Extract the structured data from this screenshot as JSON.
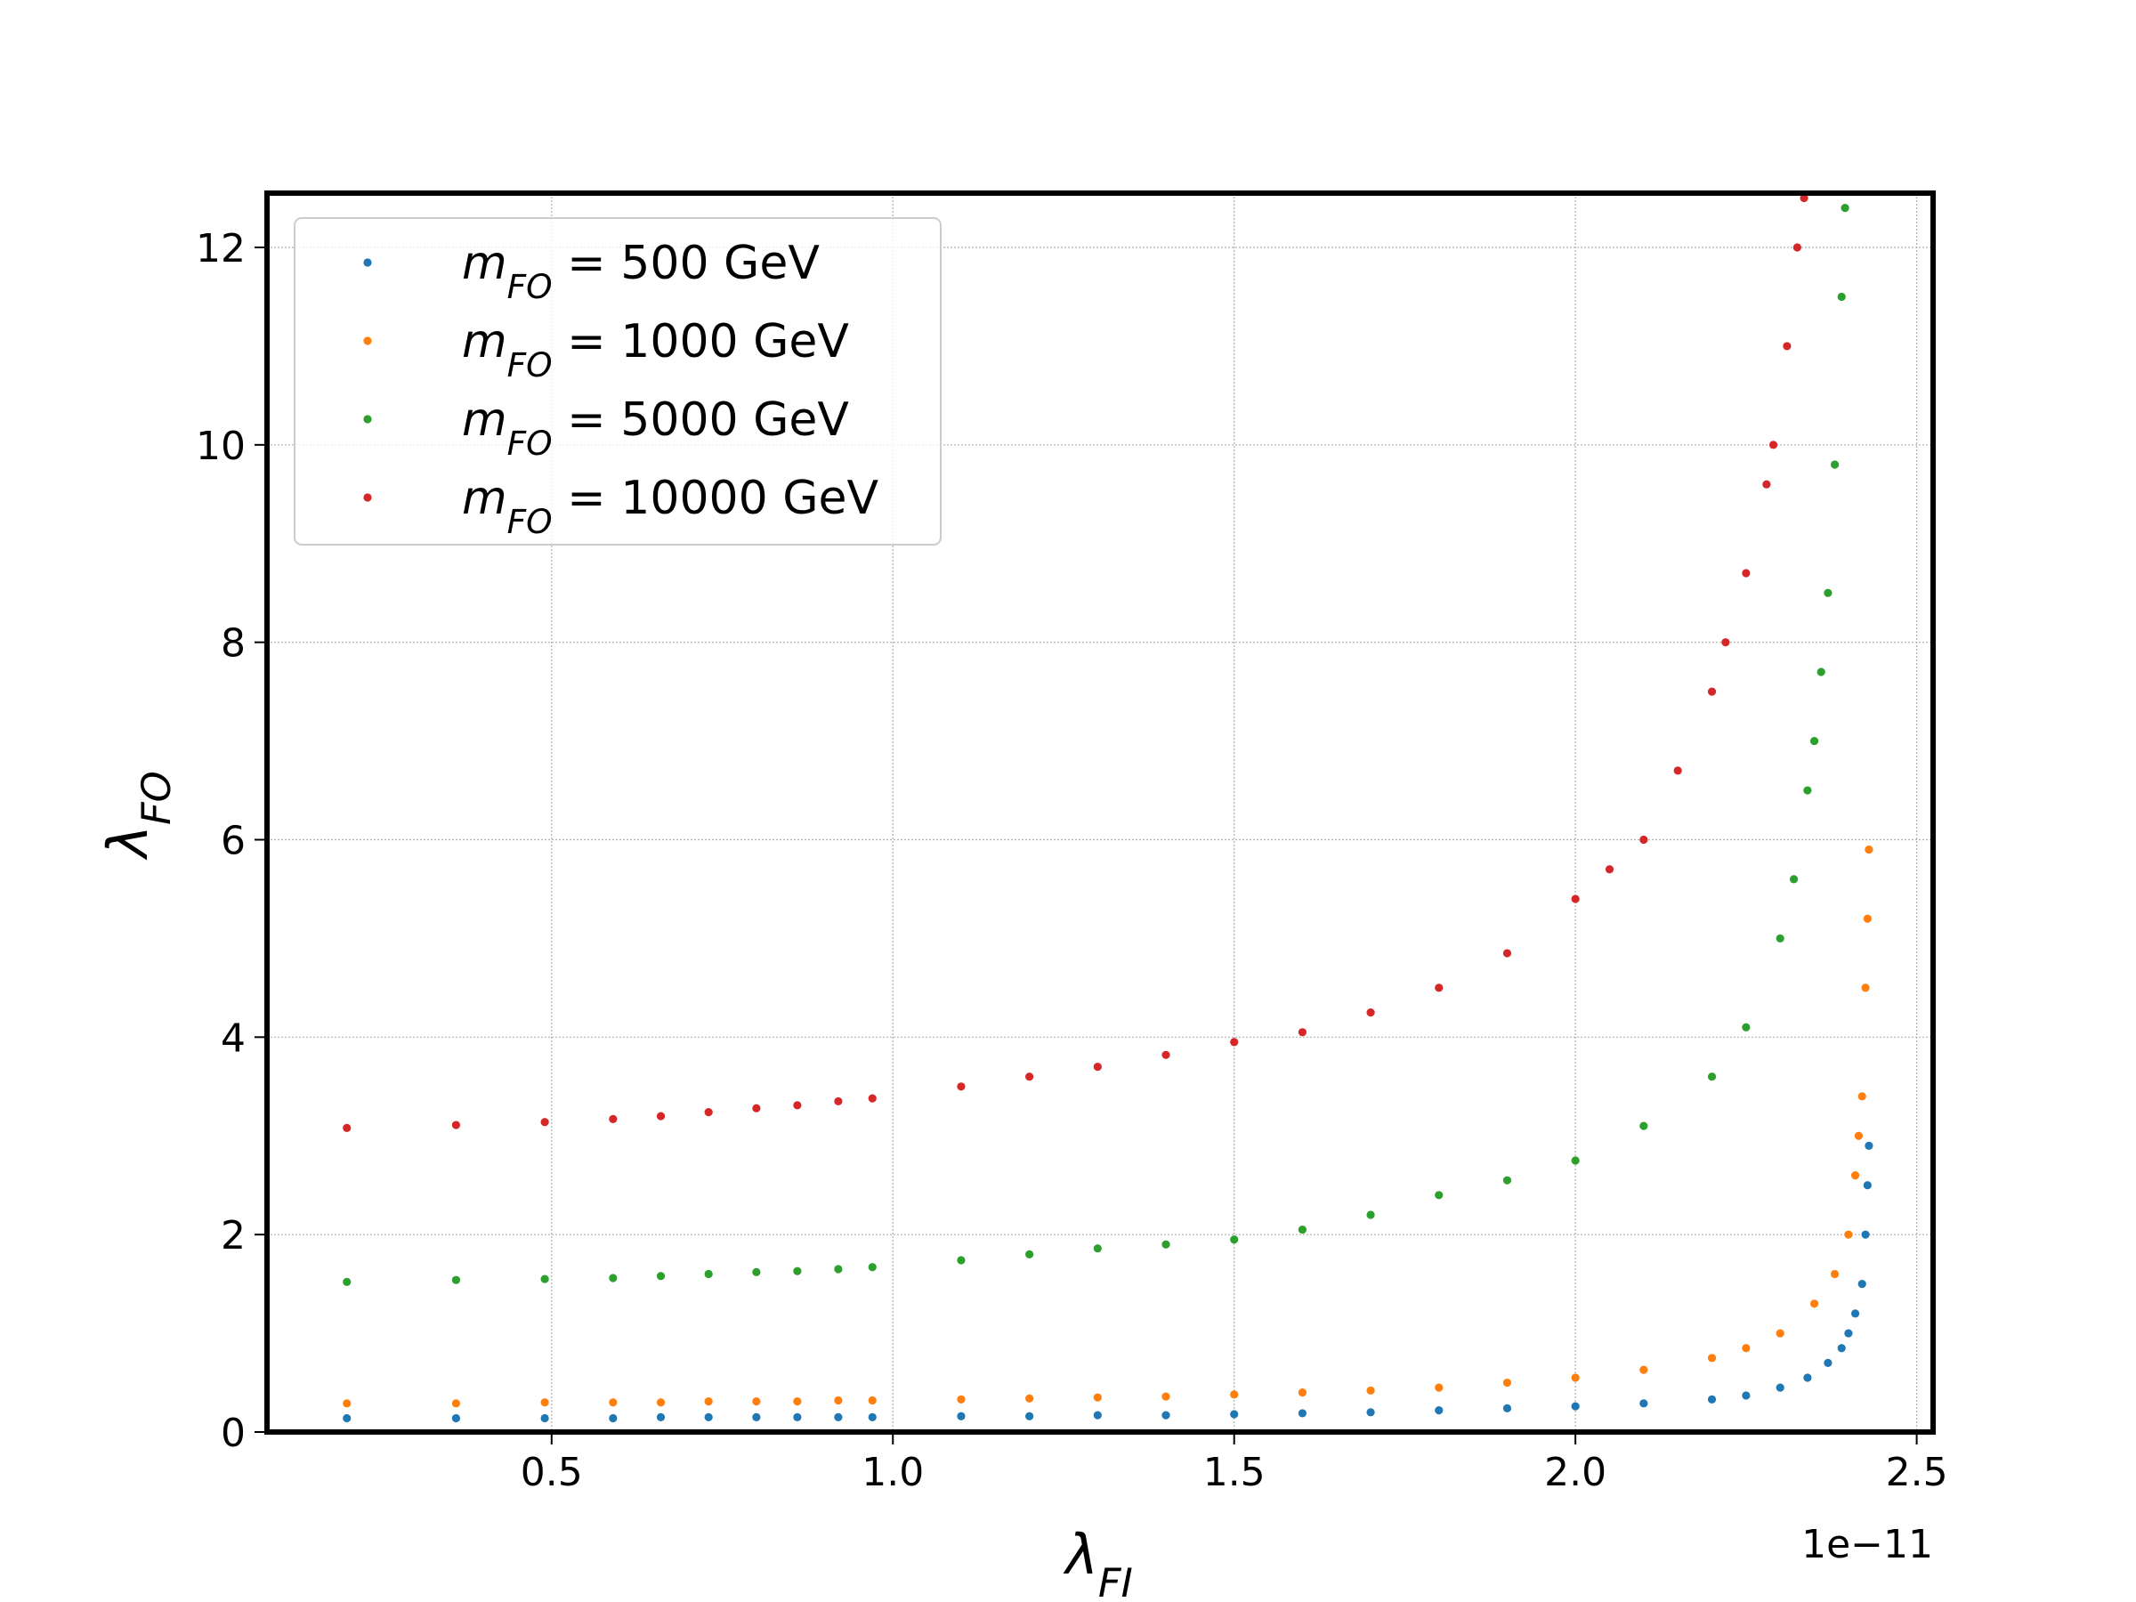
{
  "chart_data": {
    "type": "scatter",
    "xlabel": "λ_FI",
    "ylabel": "λ_FO",
    "x_offset_label": "1e−11",
    "xlim": [
      0.083,
      2.524
    ],
    "ylim": [
      0,
      12.55
    ],
    "xticks": [
      {
        "value": 0.5,
        "label": "0.5"
      },
      {
        "value": 1.0,
        "label": "1.0"
      },
      {
        "value": 1.5,
        "label": "1.5"
      },
      {
        "value": 2.0,
        "label": "2.0"
      },
      {
        "value": 2.5,
        "label": "2.5"
      }
    ],
    "yticks": [
      0,
      2,
      4,
      6,
      8,
      10,
      12
    ],
    "grid": true,
    "legend": "upper left",
    "series": [
      {
        "name": "m_FO = 500 GeV",
        "color": "#1f77b4",
        "x": [
          0.2,
          0.36,
          0.49,
          0.59,
          0.66,
          0.73,
          0.8,
          0.86,
          0.92,
          0.97,
          1.1,
          1.2,
          1.3,
          1.4,
          1.5,
          1.6,
          1.7,
          1.8,
          1.9,
          2.0,
          2.1,
          2.2,
          2.25,
          2.3,
          2.34,
          2.37,
          2.39,
          2.4,
          2.41,
          2.42,
          2.425,
          2.428,
          2.43
        ],
        "values": [
          0.14,
          0.14,
          0.14,
          0.14,
          0.15,
          0.15,
          0.15,
          0.15,
          0.15,
          0.15,
          0.16,
          0.16,
          0.17,
          0.17,
          0.18,
          0.19,
          0.2,
          0.22,
          0.24,
          0.26,
          0.29,
          0.33,
          0.37,
          0.45,
          0.55,
          0.7,
          0.85,
          1.0,
          1.2,
          1.5,
          2.0,
          2.5,
          2.9
        ]
      },
      {
        "name": "m_FO = 1000 GeV",
        "color": "#ff7f0e",
        "x": [
          0.2,
          0.36,
          0.49,
          0.59,
          0.66,
          0.73,
          0.8,
          0.86,
          0.92,
          0.97,
          1.1,
          1.2,
          1.3,
          1.4,
          1.5,
          1.6,
          1.7,
          1.8,
          1.9,
          2.0,
          2.1,
          2.2,
          2.25,
          2.3,
          2.35,
          2.38,
          2.4,
          2.41,
          2.415,
          2.42,
          2.425,
          2.428,
          2.43
        ],
        "values": [
          0.29,
          0.29,
          0.3,
          0.3,
          0.3,
          0.31,
          0.31,
          0.31,
          0.32,
          0.32,
          0.33,
          0.34,
          0.35,
          0.36,
          0.38,
          0.4,
          0.42,
          0.45,
          0.5,
          0.55,
          0.63,
          0.75,
          0.85,
          1.0,
          1.3,
          1.6,
          2.0,
          2.6,
          3.0,
          3.4,
          4.5,
          5.2,
          5.9
        ]
      },
      {
        "name": "m_FO = 5000 GeV",
        "color": "#2ca02c",
        "x": [
          0.2,
          0.36,
          0.49,
          0.59,
          0.66,
          0.73,
          0.8,
          0.86,
          0.92,
          0.97,
          1.1,
          1.2,
          1.3,
          1.4,
          1.5,
          1.6,
          1.7,
          1.8,
          1.9,
          2.0,
          2.1,
          2.2,
          2.25,
          2.3,
          2.32,
          2.34,
          2.35,
          2.36,
          2.37,
          2.38,
          2.39,
          2.395
        ],
        "values": [
          1.52,
          1.54,
          1.55,
          1.56,
          1.58,
          1.6,
          1.62,
          1.63,
          1.65,
          1.67,
          1.74,
          1.8,
          1.86,
          1.9,
          1.95,
          2.05,
          2.2,
          2.4,
          2.55,
          2.75,
          3.1,
          3.6,
          4.1,
          5.0,
          5.6,
          6.5,
          7.0,
          7.7,
          8.5,
          9.8,
          11.5,
          12.4
        ]
      },
      {
        "name": "m_FO = 10000 GeV",
        "color": "#d62728",
        "x": [
          0.2,
          0.36,
          0.49,
          0.59,
          0.66,
          0.73,
          0.8,
          0.86,
          0.92,
          0.97,
          1.1,
          1.2,
          1.3,
          1.4,
          1.5,
          1.6,
          1.7,
          1.8,
          1.9,
          2.0,
          2.05,
          2.1,
          2.15,
          2.2,
          2.22,
          2.25,
          2.28,
          2.29,
          2.31,
          2.325,
          2.335
        ],
        "values": [
          3.08,
          3.11,
          3.14,
          3.17,
          3.2,
          3.24,
          3.28,
          3.31,
          3.35,
          3.38,
          3.5,
          3.6,
          3.7,
          3.82,
          3.95,
          4.05,
          4.25,
          4.5,
          4.85,
          5.4,
          5.7,
          6.0,
          6.7,
          7.5,
          8.0,
          8.7,
          9.6,
          10.0,
          11.0,
          12.0,
          12.5
        ]
      }
    ]
  }
}
